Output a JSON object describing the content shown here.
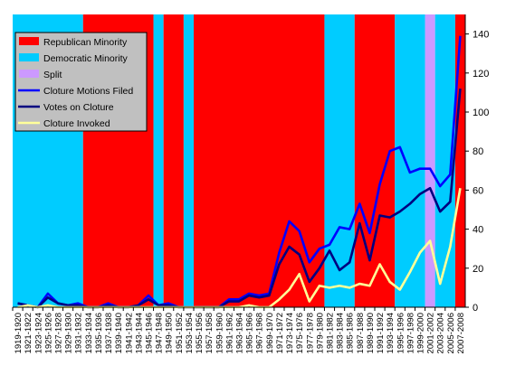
{
  "chart_data": {
    "type": "line",
    "title": "",
    "xlabel": "",
    "ylabel": "",
    "ylim": [
      0,
      150
    ],
    "yticks": [
      0,
      20,
      40,
      60,
      80,
      100,
      120,
      140
    ],
    "grid": false,
    "legend_position": "top-left",
    "categories": [
      "1919-1920",
      "1921-1922",
      "1923-1924",
      "1925-1926",
      "1927-1928",
      "1929-1930",
      "1931-1932",
      "1933-1934",
      "1935-1936",
      "1937-1938",
      "1939-1940",
      "1941-1942",
      "1943-1944",
      "1945-1946",
      "1947-1948",
      "1949-1950",
      "1951-1952",
      "1953-1954",
      "1955-1956",
      "1957-1958",
      "1959-1960",
      "1961-1962",
      "1963-1964",
      "1965-1966",
      "1967-1968",
      "1969-1970",
      "1971-1972",
      "1973-1974",
      "1975-1976",
      "1977-1978",
      "1979-1980",
      "1981-1982",
      "1983-1984",
      "1985-1986",
      "1987-1988",
      "1989-1990",
      "1991-1992",
      "1993-1994",
      "1995-1996",
      "1997-1998",
      "1999-2000",
      "2001-2002",
      "2003-2004",
      "2005-2006",
      "2007-2008"
    ],
    "background_bands": {
      "colors": {
        "Republican Minority": "#ff0000",
        "Democratic Minority": "#00ccff",
        "Split": "#cc99ff"
      },
      "segments": [
        {
          "label": "Democratic Minority",
          "from": "1919-1920",
          "to": "1931-1932"
        },
        {
          "label": "Republican Minority",
          "from": "1933-1934",
          "to": "1945-1946"
        },
        {
          "label": "Democratic Minority",
          "from": "1947-1948",
          "to": "1947-1948"
        },
        {
          "label": "Republican Minority",
          "from": "1949-1950",
          "to": "1951-1952"
        },
        {
          "label": "Democratic Minority",
          "from": "1953-1954",
          "to": "1953-1954"
        },
        {
          "label": "Republican Minority",
          "from": "1955-1956",
          "to": "1979-1980"
        },
        {
          "label": "Democratic Minority",
          "from": "1981-1982",
          "to": "1985-1986"
        },
        {
          "label": "Republican Minority",
          "from": "1987-1988",
          "to": "1993-1994"
        },
        {
          "label": "Democratic Minority",
          "from": "1995-1996",
          "to": "1999-2000"
        },
        {
          "label": "Split",
          "from": "2001-2002",
          "to": "2001-2002"
        },
        {
          "label": "Democratic Minority",
          "from": "2003-2004",
          "to": "2005-2006"
        },
        {
          "label": "Republican Minority",
          "from": "2007-2008",
          "to": "2007-2008"
        }
      ]
    },
    "series": [
      {
        "name": "Cloture Motions Filed",
        "color": "#0000ff",
        "values": [
          2,
          1,
          0,
          7,
          2,
          1,
          2,
          0,
          0,
          2,
          0,
          0,
          1,
          6,
          1,
          2,
          0,
          0,
          0,
          0,
          0,
          4,
          4,
          7,
          6,
          7,
          28,
          44,
          39,
          23,
          30,
          32,
          41,
          40,
          53,
          38,
          63,
          80,
          82,
          69,
          71,
          71,
          62,
          68,
          139
        ]
      },
      {
        "name": "Votes on Cloture",
        "color": "#000080",
        "values": [
          2,
          1,
          0,
          5,
          2,
          1,
          1,
          0,
          0,
          1,
          0,
          0,
          1,
          4,
          1,
          1,
          0,
          0,
          0,
          0,
          0,
          3,
          3,
          6,
          5,
          6,
          22,
          31,
          27,
          13,
          20,
          29,
          19,
          23,
          43,
          24,
          47,
          46,
          49,
          53,
          58,
          61,
          49,
          54,
          112
        ]
      },
      {
        "name": "Cloture Invoked",
        "color": "#ffff99",
        "values": [
          0,
          1,
          0,
          1,
          0,
          0,
          0,
          0,
          0,
          0,
          0,
          0,
          0,
          0,
          0,
          0,
          0,
          0,
          0,
          0,
          0,
          0,
          0,
          1,
          0,
          0,
          4,
          9,
          17,
          3,
          11,
          10,
          11,
          10,
          12,
          11,
          22,
          13,
          9,
          18,
          28,
          34,
          12,
          31,
          61
        ]
      }
    ],
    "legend": [
      {
        "label": "Republican Minority",
        "kind": "box",
        "color": "#ff0000"
      },
      {
        "label": "Democratic Minority",
        "kind": "box",
        "color": "#00ccff"
      },
      {
        "label": "Split",
        "kind": "box",
        "color": "#cc99ff"
      },
      {
        "label": "Cloture Motions Filed",
        "kind": "line",
        "color": "#0000ff"
      },
      {
        "label": "Votes on Cloture",
        "kind": "line",
        "color": "#000080"
      },
      {
        "label": "Cloture Invoked",
        "kind": "line",
        "color": "#ffff99"
      }
    ]
  }
}
